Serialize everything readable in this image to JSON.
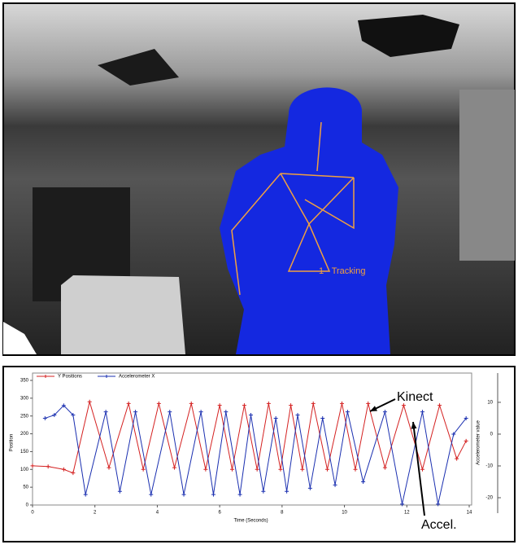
{
  "image": {
    "label": "1 - Tracking"
  },
  "chart_data": {
    "type": "line",
    "xlabel": "Time (Seconds)",
    "ylabel": "Position",
    "y2label": "Accelerometer value",
    "xlim": [
      0,
      14
    ],
    "xticks": [
      0,
      2,
      4,
      6,
      8,
      10,
      12,
      14
    ],
    "ylim": [
      0,
      350
    ],
    "yticks": [
      0,
      50,
      100,
      150,
      200,
      250,
      300,
      350
    ],
    "y2lim": [
      -22.3,
      16.9
    ],
    "y2ticks": [
      -20,
      -10,
      0,
      10
    ],
    "legend": "top-left",
    "annotations": [
      "Kinect",
      "Accel."
    ],
    "series": [
      {
        "name": "Y Positions",
        "color": "#d42020",
        "x": [
          0,
          0.5,
          1.0,
          1.3,
          1.83,
          2.45,
          3.08,
          3.55,
          4.05,
          4.55,
          5.09,
          5.55,
          6.0,
          6.4,
          6.79,
          7.2,
          7.57,
          7.95,
          8.28,
          8.65,
          9.0,
          9.45,
          9.92,
          10.35,
          10.76,
          11.3,
          11.9,
          12.5,
          13.05,
          13.6,
          13.9
        ],
        "values": [
          110,
          108,
          100,
          90,
          290,
          105,
          285,
          100,
          285,
          105,
          285,
          100,
          280,
          100,
          280,
          100,
          285,
          100,
          280,
          100,
          285,
          100,
          285,
          100,
          285,
          105,
          280,
          100,
          280,
          130,
          180
        ]
      },
      {
        "name": "Accelerometer X",
        "color": "#1a2fb0",
        "axis": "y2",
        "x": [
          0.4,
          0.7,
          1.0,
          1.3,
          1.7,
          2.35,
          2.8,
          3.3,
          3.8,
          4.4,
          4.85,
          5.4,
          5.8,
          6.2,
          6.65,
          7.0,
          7.4,
          7.8,
          8.15,
          8.5,
          8.9,
          9.3,
          9.7,
          10.1,
          10.6,
          11.3,
          11.85,
          12.5,
          13.0,
          13.5,
          13.9
        ],
        "values": [
          5,
          6,
          9,
          6,
          -19,
          7,
          -18,
          7,
          -19,
          7,
          -19,
          7,
          -19,
          7,
          -19,
          6,
          -18,
          5,
          -18,
          6,
          -17,
          5,
          -16,
          7,
          -15,
          7,
          -22,
          7,
          -22,
          0,
          5
        ]
      }
    ]
  }
}
